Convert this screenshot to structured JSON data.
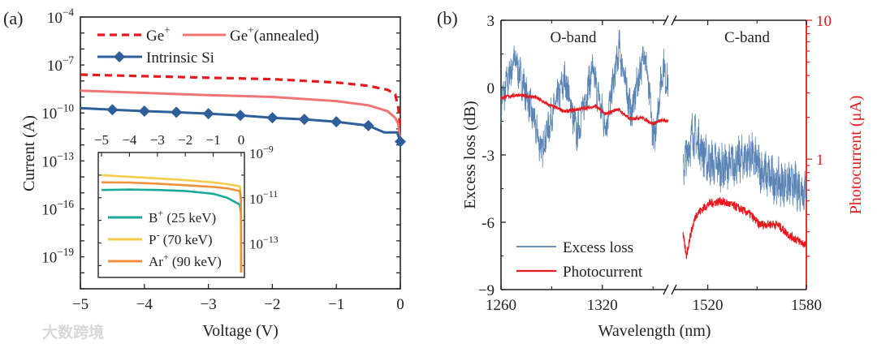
{
  "watermark": "大数跨境",
  "chart_data": [
    {
      "panel_label": "(a)",
      "type": "line",
      "xlabel": "Voltage (V)",
      "ylabel": "Current (A)",
      "xlim": [
        -5,
        0
      ],
      "ylim": [
        1e-21,
        0.0001
      ],
      "yscale": "log",
      "xticks": [
        -5,
        -4,
        -3,
        -2,
        -1,
        0
      ],
      "xtick_labels": [
        "−5",
        "−4",
        "−3",
        "−2",
        "−1",
        "0"
      ],
      "yticks": [
        -4,
        -7,
        -10,
        -13,
        -16,
        -19
      ],
      "ytick_labels": [
        "10",
        "10",
        "10",
        "10",
        "10",
        "10"
      ],
      "ytick_exps": [
        "−4",
        "−7",
        "−10",
        "−13",
        "−16",
        "−19"
      ],
      "legend_position": "top",
      "series": [
        {
          "name": "Ge",
          "sup": "+",
          "color": "#e8191e",
          "style": "dashed",
          "x": [
            -5,
            -4,
            -3,
            -2,
            -1,
            -0.5,
            -0.2,
            -0.08,
            -0.03,
            0
          ],
          "y": [
            2.5e-08,
            2e-08,
            1.6e-08,
            1.3e-08,
            8e-09,
            5e-09,
            2.8e-09,
            1.5e-09,
            2e-10,
            1e-11
          ]
        },
        {
          "name": "Ge",
          "sup": "+",
          "suffix": "(annealed)",
          "color": "#f07575",
          "style": "solid",
          "x": [
            -5,
            -4,
            -3,
            -2,
            -1,
            -0.5,
            -0.2,
            -0.08,
            -0.03,
            0
          ],
          "y": [
            2.5e-09,
            1.8e-09,
            1.3e-09,
            1e-09,
            5.5e-10,
            3e-10,
            1.3e-10,
            5e-11,
            2e-11,
            1e-12
          ]
        },
        {
          "name": "Intrinsic Si",
          "color": "#2e5f9a",
          "style": "solid",
          "marker": "diamond",
          "x": [
            -5,
            -4.5,
            -4,
            -3.5,
            -3,
            -2.5,
            -2,
            -1.5,
            -1,
            -0.5,
            -0.25,
            -0.05,
            0
          ],
          "y": [
            2e-10,
            1.6e-10,
            1.3e-10,
            1.1e-10,
            9e-11,
            7e-11,
            5e-11,
            4e-11,
            2.8e-11,
            1.6e-11,
            6e-12,
            6e-12,
            1.6e-12
          ],
          "marker_x": [
            -4.5,
            -4,
            -3.5,
            -3,
            -2.5,
            -2,
            -1.5,
            -1,
            -0.5,
            0
          ]
        }
      ],
      "inset": {
        "xlim": [
          -5,
          0
        ],
        "ylim": [
          3e-15,
          1e-09
        ],
        "yscale": "log",
        "xticks": [
          -5,
          -4,
          -3,
          -2,
          -1,
          0
        ],
        "xtick_labels": [
          "−5",
          "−4",
          "−3",
          "−2",
          "−1",
          "0"
        ],
        "yticks": [
          -9,
          -11,
          -13
        ],
        "ytick_labels": [
          "10",
          "10",
          "10"
        ],
        "ytick_exps": [
          "−9",
          "−11",
          "−13"
        ],
        "series": [
          {
            "name": "B",
            "sup": "+",
            "suffix": " (25 keV)",
            "color": "#1aa89a",
            "x": [
              -5,
              -4,
              -3,
              -2,
              -1,
              -0.5,
              -0.05,
              -0.01,
              0
            ],
            "y": [
              2.2e-11,
              2.3e-11,
              2.2e-11,
              2e-11,
              1.5e-11,
              1e-11,
              5e-12,
              2e-12,
              5e-15
            ]
          },
          {
            "name": "P",
            "sup": "-",
            "suffix": " (70 keV)",
            "color": "#f5cc4a",
            "x": [
              -5,
              -4,
              -3,
              -2,
              -1,
              -0.5,
              -0.05,
              -0.01,
              0
            ],
            "y": [
              1e-10,
              8.5e-11,
              7.2e-11,
              6e-11,
              4.8e-11,
              4e-11,
              3.2e-11,
              1e-11,
              5e-15
            ]
          },
          {
            "name": "Ar",
            "sup": "+",
            "suffix": " (90 keV)",
            "color": "#f0913a",
            "x": [
              -5,
              -4,
              -3,
              -2,
              -1,
              -0.5,
              -0.05,
              -0.01,
              0
            ],
            "y": [
              4.8e-11,
              4.7e-11,
              4.2e-11,
              3.6e-11,
              3e-11,
              2.6e-11,
              2e-11,
              8e-12,
              5e-15
            ]
          }
        ],
        "legend_position": "bottom-left"
      }
    },
    {
      "panel_label": "(b)",
      "type": "line",
      "xlabel": "Wavelength (nm)",
      "ylabel": "Excess loss (dB)",
      "ylabel_right": "Photocurrent (μA)",
      "x_break": true,
      "xlim_segments": [
        [
          1260,
          1360
        ],
        [
          1497,
          1580
        ]
      ],
      "xticks": [
        1260,
        1320,
        1520,
        1580
      ],
      "xtick_labels": [
        "1260",
        "1320",
        "1520",
        "1580"
      ],
      "ylim": [
        -9,
        3
      ],
      "yticks": [
        3,
        0,
        -3,
        -6,
        -9
      ],
      "ytick_labels": [
        "3",
        "0",
        "-3",
        "-6",
        "−9"
      ],
      "ylim_right": [
        0.115,
        10
      ],
      "yscale_right": "log",
      "yticks_right": [
        10,
        1
      ],
      "ytick_labels_right": [
        "10",
        "1"
      ],
      "annotations": [
        "O-band",
        "C-band"
      ],
      "legend_position": "bottom-left",
      "series": [
        {
          "name": "Excess loss",
          "axis": "left",
          "color": "#3d6fa8",
          "x": [
            1260,
            1268,
            1276,
            1284,
            1291,
            1298,
            1305,
            1314,
            1322,
            1330,
            1337,
            1345,
            1350.5,
            1356,
            1359,
            1505,
            1511,
            1520,
            1530,
            1538,
            1546,
            1554,
            1562,
            1570,
            1580
          ],
          "y": [
            -0.7,
            1.3,
            -0.5,
            -2.8,
            -1.0,
            0.4,
            -2.1,
            0.8,
            -1.8,
            1.8,
            -1.2,
            1.7,
            -2.4,
            1.0,
            0.0,
            -3.6,
            -2.0,
            -3.3,
            -3.6,
            -3.3,
            -3.0,
            -3.8,
            -4.2,
            -4.3,
            -4.6
          ]
        },
        {
          "name": "Photocurrent",
          "axis": "right",
          "color": "#e8191e",
          "x": [
            1260,
            1269,
            1280,
            1287,
            1298,
            1316,
            1322,
            1329,
            1336,
            1343,
            1350,
            1355,
            1359,
            1505,
            1507,
            1513,
            1521,
            1528,
            1538,
            1546,
            1551,
            1562,
            1570,
            1580
          ],
          "y": [
            2.76,
            2.9,
            2.8,
            2.5,
            2.2,
            2.4,
            2.1,
            2.3,
            1.95,
            2.0,
            1.8,
            1.9,
            1.9,
            0.28,
            0.2,
            0.4,
            0.48,
            0.5,
            0.45,
            0.4,
            0.34,
            0.34,
            0.28,
            0.24
          ]
        }
      ]
    }
  ]
}
